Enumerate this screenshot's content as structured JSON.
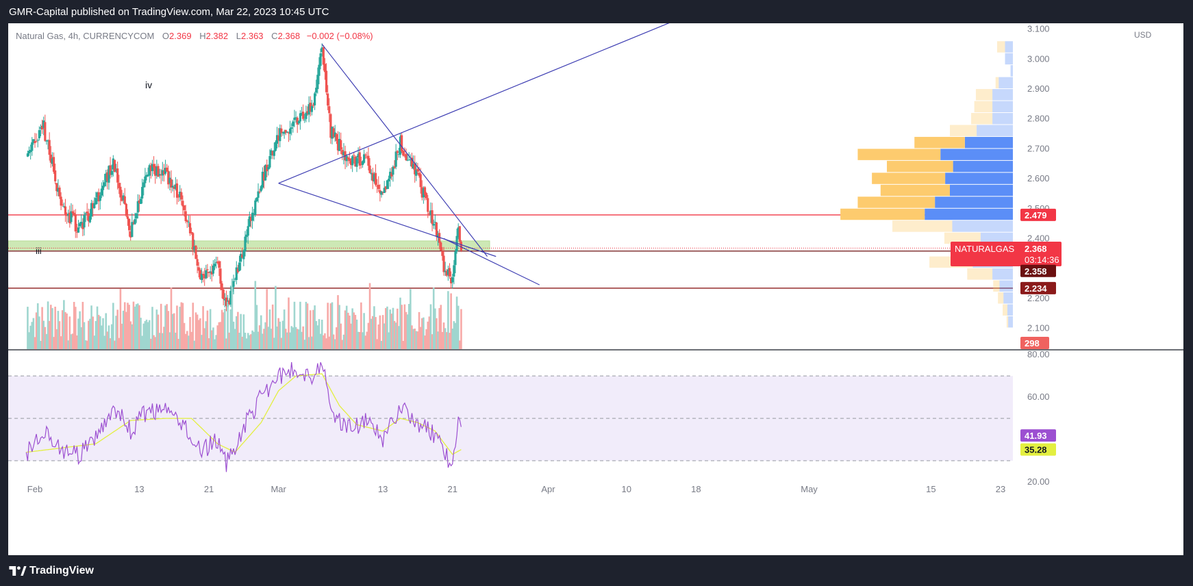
{
  "header": {
    "published": "GMR-Capital published on TradingView.com, Mar 22, 2023 10:45 UTC"
  },
  "footer": {
    "brand": "TradingView"
  },
  "legend": {
    "symbol": "Natural Gas, 4h, CURRENCYCOM",
    "open_label": "O",
    "open": "2.369",
    "high_label": "H",
    "high": "2.382",
    "low_label": "L",
    "low": "2.363",
    "close_label": "C",
    "close": "2.368",
    "change": "−0.002 (−0.08%)"
  },
  "colors": {
    "up": "#26a69a",
    "down": "#ef5350",
    "trendline": "#3f3fb3",
    "rsi": "#9c4fd1",
    "rsi_ma": "#e3ef40",
    "hline_red": "#f23645",
    "vp_up": "#fdcb6e",
    "vp_down": "#5b8ef7"
  },
  "chart_data": [
    {
      "type": "candlestick",
      "currency": "USD",
      "ylim": [
        2.03,
        3.12
      ],
      "yticks": [
        "3.100",
        "3.000",
        "2.900",
        "2.800",
        "2.700",
        "2.600",
        "2.500",
        "2.400",
        "2.300",
        "2.200",
        "2.100"
      ],
      "yvalues": [
        3.1,
        3.0,
        2.9,
        2.8,
        2.7,
        2.6,
        2.5,
        2.4,
        2.3,
        2.2,
        2.1
      ],
      "xticks": [
        "Feb",
        "13",
        "21",
        "Mar",
        "13",
        "21",
        "Apr",
        "10",
        "18",
        "May",
        "15",
        "23"
      ],
      "xtick_dates": [
        "2023-02-01",
        "2023-02-13",
        "2023-02-21",
        "2023-03-01",
        "2023-03-13",
        "2023-03-21",
        "2023-04-01",
        "2023-04-10",
        "2023-04-18",
        "2023-05-01",
        "2023-05-15",
        "2023-05-23"
      ],
      "price_path": [
        [
          "2023-01-31",
          2.68
        ],
        [
          "2023-02-02",
          2.77
        ],
        [
          "2023-02-04",
          2.52
        ],
        [
          "2023-02-06",
          2.43
        ],
        [
          "2023-02-08",
          2.52
        ],
        [
          "2023-02-10",
          2.66
        ],
        [
          "2023-02-12",
          2.42
        ],
        [
          "2023-02-14",
          2.63
        ],
        [
          "2023-02-16",
          2.62
        ],
        [
          "2023-02-18",
          2.52
        ],
        [
          "2023-02-20",
          2.28
        ],
        [
          "2023-02-22",
          2.31
        ],
        [
          "2023-02-23",
          2.15
        ],
        [
          "2023-02-25",
          2.38
        ],
        [
          "2023-02-27",
          2.59
        ],
        [
          "2023-03-01",
          2.74
        ],
        [
          "2023-03-03",
          2.79
        ],
        [
          "2023-03-05",
          2.85
        ],
        [
          "2023-03-06",
          3.04
        ],
        [
          "2023-03-07",
          2.76
        ],
        [
          "2023-03-09",
          2.66
        ],
        [
          "2023-03-11",
          2.67
        ],
        [
          "2023-03-13",
          2.54
        ],
        [
          "2023-03-15",
          2.72
        ],
        [
          "2023-03-17",
          2.6
        ],
        [
          "2023-03-19",
          2.44
        ],
        [
          "2023-03-20",
          2.3
        ],
        [
          "2023-03-21",
          2.26
        ],
        [
          "2023-03-21T16:00",
          2.45
        ],
        [
          "2023-03-22",
          2.368
        ]
      ],
      "horizontal_lines": [
        {
          "price": 2.479,
          "label": "2.479",
          "color": "#f23645"
        },
        {
          "price": 2.368,
          "label": "2.368",
          "color": "#f23645"
        },
        {
          "price": 2.358,
          "label": "2.358",
          "color": "#8b1a1a"
        },
        {
          "price": 2.234,
          "label": "2.234",
          "color": "#8b1a1a"
        }
      ],
      "support_zone": [
        2.362,
        2.392
      ],
      "price_label": {
        "symbol": "NATURALGAS",
        "price": "2.368",
        "countdown": "03:14:36"
      },
      "volume_label": "298",
      "wave_labels": [
        "iv",
        "iii"
      ],
      "trendlines": [
        {
          "from": [
            "2023-03-01",
            2.585
          ],
          "to": [
            "2023-03-26",
            2.34
          ]
        },
        {
          "from": [
            "2023-03-01",
            2.585
          ],
          "to": [
            "2023-04-19",
            3.17
          ]
        },
        {
          "from": [
            "2023-03-06",
            3.05
          ],
          "to": [
            "2023-03-25",
            2.34
          ]
        },
        {
          "from": [
            "2023-03-20",
            2.4
          ],
          "to": [
            "2023-03-31",
            2.245
          ]
        }
      ],
      "volume_profile": [
        {
          "price": 3.04,
          "up": 1,
          "down": 1
        },
        {
          "price": 3.0,
          "up": 0,
          "down": 1
        },
        {
          "price": 2.96,
          "up": 0,
          "down": 0.3
        },
        {
          "price": 2.92,
          "up": 0.4,
          "down": 1.8
        },
        {
          "price": 2.88,
          "up": 2.1,
          "down": 2.6
        },
        {
          "price": 2.84,
          "up": 2.3,
          "down": 2.6
        },
        {
          "price": 2.8,
          "up": 2.7,
          "down": 2.6
        },
        {
          "price": 2.76,
          "up": 3.4,
          "down": 4.6
        },
        {
          "price": 2.72,
          "up": 6.4,
          "down": 6.1
        },
        {
          "price": 2.68,
          "up": 10.5,
          "down": 9.2
        },
        {
          "price": 2.64,
          "up": 8.4,
          "down": 7.6
        },
        {
          "price": 2.6,
          "up": 9.3,
          "down": 8.6
        },
        {
          "price": 2.56,
          "up": 8.8,
          "down": 8.0
        },
        {
          "price": 2.52,
          "up": 9.8,
          "down": 9.9
        },
        {
          "price": 2.48,
          "up": 10.7,
          "down": 11.2
        },
        {
          "price": 2.44,
          "up": 7.6,
          "down": 7.7
        },
        {
          "price": 2.4,
          "up": 4.6,
          "down": 4.1
        },
        {
          "price": 2.36,
          "up": 1.2,
          "down": 3.1
        },
        {
          "price": 2.32,
          "up": 5.5,
          "down": 5.1
        },
        {
          "price": 2.28,
          "up": 3.2,
          "down": 2.6
        },
        {
          "price": 2.24,
          "up": 0.8,
          "down": 1.7
        },
        {
          "price": 2.2,
          "up": 0.7,
          "down": 1.2
        },
        {
          "price": 2.16,
          "up": 0.6,
          "down": 0.7
        },
        {
          "price": 2.12,
          "up": 0.2,
          "down": 0.6
        }
      ]
    },
    {
      "type": "line",
      "name": "RSI",
      "ylim": [
        20,
        82
      ],
      "yticks": [
        "80.00",
        "60.00",
        "20.00"
      ],
      "yvalues": [
        80,
        60,
        20
      ],
      "bands": [
        70,
        50,
        30
      ],
      "rsi_label": "41.93",
      "ma_label": "35.28",
      "rsi_value": 41.93,
      "ma_value": 35.28,
      "rsi_path": [
        [
          "2023-01-31",
          33
        ],
        [
          "2023-02-02",
          45
        ],
        [
          "2023-02-04",
          35
        ],
        [
          "2023-02-06",
          32
        ],
        [
          "2023-02-08",
          40
        ],
        [
          "2023-02-10",
          56
        ],
        [
          "2023-02-12",
          44
        ],
        [
          "2023-02-14",
          54
        ],
        [
          "2023-02-16",
          53
        ],
        [
          "2023-02-18",
          48
        ],
        [
          "2023-02-20",
          34
        ],
        [
          "2023-02-22",
          40
        ],
        [
          "2023-02-23",
          28
        ],
        [
          "2023-02-25",
          46
        ],
        [
          "2023-02-27",
          60
        ],
        [
          "2023-03-01",
          70
        ],
        [
          "2023-03-03",
          73
        ],
        [
          "2023-03-05",
          70
        ],
        [
          "2023-03-06",
          78
        ],
        [
          "2023-03-07",
          52
        ],
        [
          "2023-03-09",
          46
        ],
        [
          "2023-03-11",
          48
        ],
        [
          "2023-03-13",
          40
        ],
        [
          "2023-03-15",
          56
        ],
        [
          "2023-03-17",
          48
        ],
        [
          "2023-03-19",
          42
        ],
        [
          "2023-03-20",
          34
        ],
        [
          "2023-03-21",
          28
        ],
        [
          "2023-03-21T16:00",
          48
        ],
        [
          "2023-03-22",
          41.93
        ]
      ],
      "ma_path": [
        [
          "2023-01-31",
          34
        ],
        [
          "2023-02-04",
          36
        ],
        [
          "2023-02-08",
          38
        ],
        [
          "2023-02-12",
          49
        ],
        [
          "2023-02-16",
          50
        ],
        [
          "2023-02-19",
          50
        ],
        [
          "2023-02-22",
          38
        ],
        [
          "2023-02-24",
          34
        ],
        [
          "2023-02-27",
          48
        ],
        [
          "2023-03-01",
          63
        ],
        [
          "2023-03-03",
          70
        ],
        [
          "2023-03-06",
          71
        ],
        [
          "2023-03-08",
          56
        ],
        [
          "2023-03-10",
          47
        ],
        [
          "2023-03-13",
          44
        ],
        [
          "2023-03-15",
          50
        ],
        [
          "2023-03-17",
          48
        ],
        [
          "2023-03-19",
          44
        ],
        [
          "2023-03-21",
          33
        ],
        [
          "2023-03-22",
          35.28
        ]
      ]
    }
  ]
}
